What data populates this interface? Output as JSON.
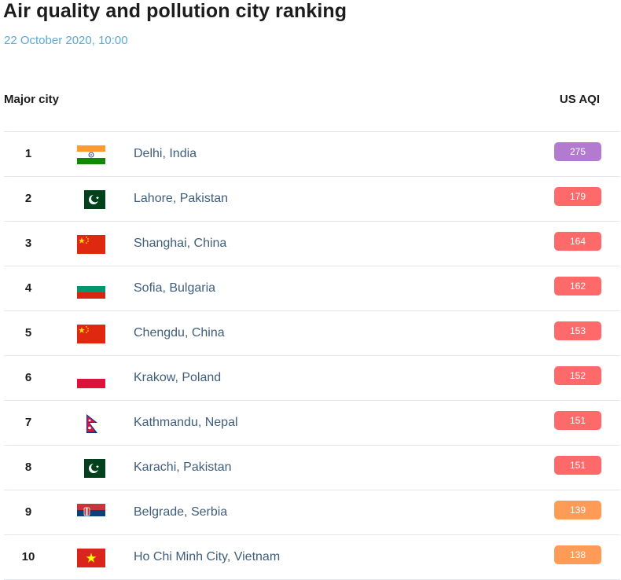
{
  "page": {
    "title": "Air quality and pollution city ranking",
    "timestamp": "22 October 2020, 10:00"
  },
  "table": {
    "headers": {
      "city": "Major city",
      "aqi": "US AQI"
    },
    "rows": [
      {
        "rank": "1",
        "city": "Delhi, India",
        "aqi": "275",
        "flag": "flag-india-icon",
        "color": "#b27bd0"
      },
      {
        "rank": "2",
        "city": "Lahore, Pakistan",
        "aqi": "179",
        "flag": "flag-pakistan-icon",
        "color": "#fe6a69"
      },
      {
        "rank": "3",
        "city": "Shanghai, China",
        "aqi": "164",
        "flag": "flag-china-icon",
        "color": "#fe6a69"
      },
      {
        "rank": "4",
        "city": "Sofia, Bulgaria",
        "aqi": "162",
        "flag": "flag-bulgaria-icon",
        "color": "#fe6a69"
      },
      {
        "rank": "5",
        "city": "Chengdu, China",
        "aqi": "153",
        "flag": "flag-china-icon",
        "color": "#fe6a69"
      },
      {
        "rank": "6",
        "city": "Krakow, Poland",
        "aqi": "152",
        "flag": "flag-poland-icon",
        "color": "#fe6a69"
      },
      {
        "rank": "7",
        "city": "Kathmandu, Nepal",
        "aqi": "151",
        "flag": "flag-nepal-icon",
        "color": "#fe6a69"
      },
      {
        "rank": "8",
        "city": "Karachi, Pakistan",
        "aqi": "151",
        "flag": "flag-pakistan-icon",
        "color": "#fe6a69"
      },
      {
        "rank": "9",
        "city": "Belgrade, Serbia",
        "aqi": "139",
        "flag": "flag-serbia-icon",
        "color": "#fe9b57"
      },
      {
        "rank": "10",
        "city": "Ho Chi Minh City, Vietnam",
        "aqi": "138",
        "flag": "flag-vietnam-icon",
        "color": "#fe9b57"
      }
    ]
  }
}
